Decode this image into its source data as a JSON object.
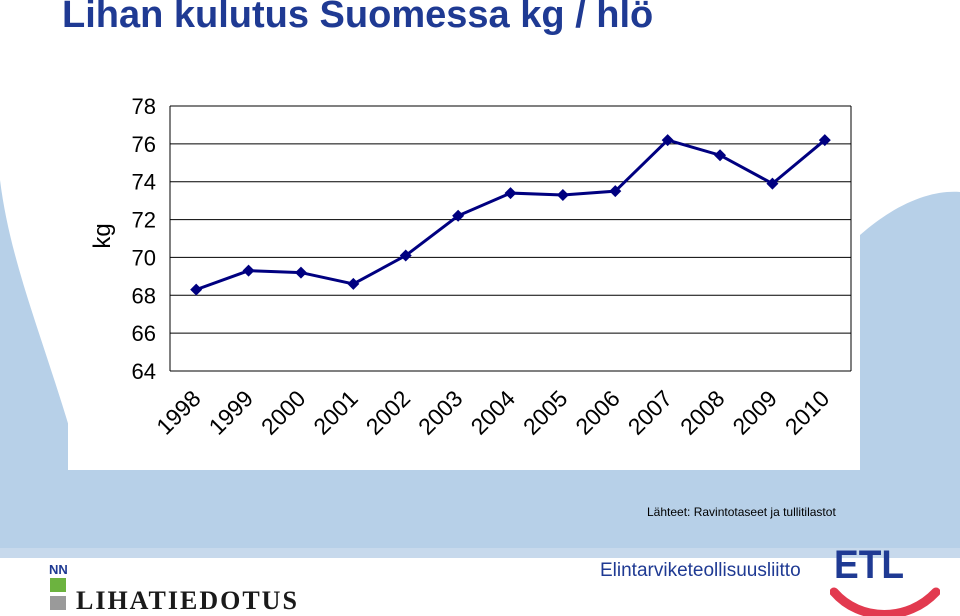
{
  "title": "Lihan kulutus Suomessa kg / hlö",
  "source": "Lähteet:  Ravintotaseet ja tullitilastot",
  "footer": {
    "nn_label": "NN",
    "brand_left": "LIHATIEDOTUS",
    "brand_right": "Elintarviketeollisuusliitto",
    "brand_right_logo": "ETL"
  },
  "colors": {
    "title": "#1f3a93",
    "series": "#000080",
    "background_shape": "#b7d0e8",
    "footer_band": "#c7d9ec",
    "accent_red": "#e23a4f"
  },
  "chart_data": {
    "type": "line",
    "title": "",
    "xlabel": "",
    "ylabel": "kg",
    "categories": [
      "1998",
      "1999",
      "2000",
      "2001",
      "2002",
      "2003",
      "2004",
      "2005",
      "2006",
      "2007",
      "2008",
      "2009",
      "2010"
    ],
    "series": [
      {
        "values": [
          68.3,
          69.3,
          69.2,
          68.6,
          70.1,
          72.2,
          73.4,
          73.3,
          73.5,
          76.2,
          75.4,
          73.9,
          76.2
        ]
      }
    ],
    "ylim": [
      64,
      78
    ],
    "yticks": [
      "64",
      "66",
      "68",
      "70",
      "72",
      "74",
      "76",
      "78"
    ],
    "grid": true,
    "marker": "diamond",
    "legend": "none"
  }
}
